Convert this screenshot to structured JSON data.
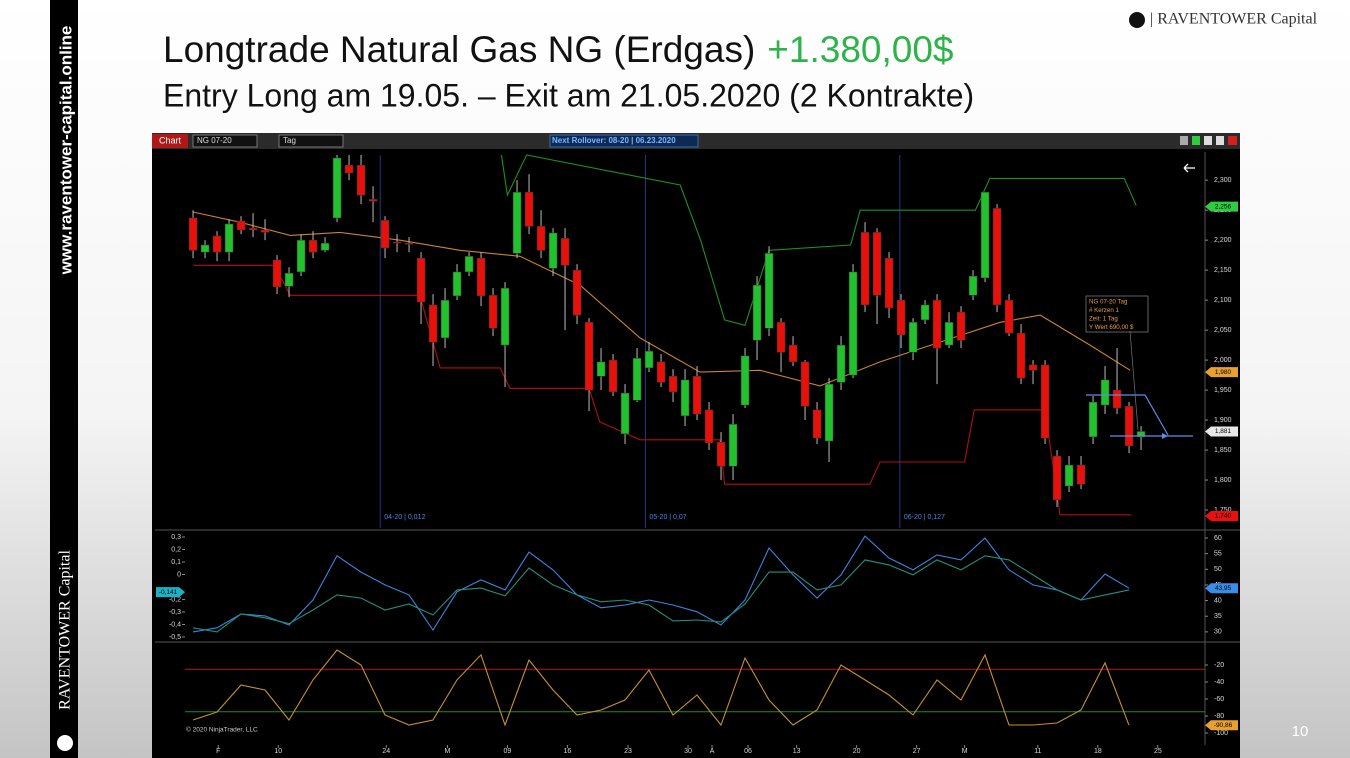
{
  "logo": "| RAVENTOWER Capital",
  "sidebar": {
    "url": "www.raventower-capital.online",
    "brand": "RAVENTOWER Capital"
  },
  "title": "Longtrade Natural Gas NG (Erdgas)",
  "profit": "+1.380,00$",
  "subtitle": "Entry Long am 19.05. – Exit am 21.05.2020 (2 Kontrakte)",
  "page_number": 10,
  "toolbar": {
    "label": "Chart",
    "instrument": "NG 07-20",
    "period": "Tag",
    "rollover": "Next Rollover: 08-20 | 06.23.2020"
  },
  "copyright": "© 2020 NinjaTrader, LLC",
  "chart_data": [
    {
      "type": "candlestick",
      "up_color": "#22c22e",
      "down_color": "#e8100a",
      "open": [
        2.237,
        2.18,
        2.207,
        2.18,
        2.232,
        2.22,
        2.217,
        2.167,
        2.123,
        2.147,
        2.2,
        2.183,
        2.237,
        2.325,
        2.325,
        2.268,
        2.233,
        2.197,
        2.195,
        2.17,
        2.092,
        2.037,
        2.107,
        2.147,
        2.17,
        2.108,
        2.025,
        2.178,
        2.28,
        2.223,
        2.153,
        2.203,
        2.15,
        2.063,
        1.973,
        2.0,
        1.877,
        1.933,
        1.987,
        1.997,
        1.973,
        1.907,
        1.973,
        1.917,
        1.863,
        1.823,
        1.925,
        2.033,
        2.053,
        2.063,
        2.025,
        1.997,
        1.917,
        1.865,
        1.963,
        1.975,
        2.213,
        2.213,
        2.17,
        2.1,
        2.013,
        2.067,
        2.1,
        2.025,
        2.08,
        2.108,
        2.137,
        2.253,
        2.1,
        2.045,
        1.992,
        1.992,
        1.84,
        1.79,
        1.825,
        1.872,
        1.925,
        1.95,
        1.923,
        1.872
      ],
      "high": [
        2.25,
        2.2,
        2.215,
        2.235,
        2.24,
        2.245,
        2.235,
        2.175,
        2.155,
        2.21,
        2.215,
        2.205,
        2.342,
        2.342,
        2.342,
        2.29,
        2.24,
        2.21,
        2.205,
        2.18,
        2.11,
        2.12,
        2.16,
        2.18,
        2.18,
        2.12,
        2.13,
        2.3,
        2.31,
        2.25,
        2.22,
        2.22,
        2.16,
        2.07,
        2.02,
        2.01,
        1.96,
        2.02,
        2.03,
        2.01,
        1.985,
        1.985,
        1.99,
        1.93,
        1.88,
        1.91,
        2.02,
        2.14,
        2.19,
        2.07,
        2.04,
        2.0,
        1.93,
        1.97,
        2.04,
        2.16,
        2.23,
        2.22,
        2.18,
        2.11,
        2.07,
        2.1,
        2.11,
        2.08,
        2.09,
        2.15,
        2.28,
        2.26,
        2.11,
        2.06,
        2.0,
        2.0,
        1.85,
        1.84,
        1.84,
        1.94,
        1.99,
        2.02,
        1.93,
        1.89
      ],
      "low": [
        2.17,
        2.17,
        2.165,
        2.165,
        2.21,
        2.205,
        2.2,
        2.11,
        2.105,
        2.14,
        2.17,
        2.18,
        2.23,
        2.3,
        2.26,
        2.23,
        2.17,
        2.18,
        2.18,
        2.06,
        1.99,
        2.02,
        2.1,
        2.14,
        2.09,
        2.04,
        1.955,
        2.17,
        2.21,
        2.17,
        2.14,
        2.05,
        2.06,
        1.915,
        1.95,
        1.94,
        1.86,
        1.93,
        1.98,
        1.955,
        1.93,
        1.89,
        1.9,
        1.85,
        1.8,
        1.8,
        1.92,
        2.0,
        2.04,
        1.98,
        1.99,
        1.9,
        1.86,
        1.83,
        1.95,
        1.97,
        2.08,
        2.06,
        2.07,
        2.02,
        2.0,
        2.06,
        1.96,
        2.02,
        2.02,
        2.1,
        2.13,
        2.08,
        2.04,
        1.96,
        1.96,
        1.86,
        1.755,
        1.78,
        1.785,
        1.86,
        1.91,
        1.91,
        1.845,
        1.85
      ],
      "close": [
        2.183,
        2.192,
        2.18,
        2.227,
        2.217,
        2.217,
        2.213,
        2.122,
        2.145,
        2.2,
        2.18,
        2.195,
        2.337,
        2.312,
        2.275,
        2.265,
        2.187,
        2.195,
        2.193,
        2.097,
        2.03,
        2.1,
        2.147,
        2.173,
        2.107,
        2.053,
        2.12,
        2.28,
        2.223,
        2.183,
        2.212,
        2.158,
        2.075,
        1.95,
        1.997,
        1.947,
        1.945,
        2.003,
        2.015,
        1.963,
        1.947,
        1.967,
        1.91,
        1.862,
        1.823,
        1.893,
        2.007,
        2.125,
        2.178,
        2.013,
        1.997,
        1.923,
        1.87,
        1.96,
        2.025,
        2.147,
        2.092,
        2.108,
        2.087,
        2.042,
        2.063,
        2.092,
        2.02,
        2.063,
        2.033,
        2.14,
        2.28,
        2.092,
        2.045,
        1.97,
        1.983,
        1.87,
        1.767,
        1.825,
        1.793,
        1.93,
        1.967,
        1.92,
        1.857,
        1.881
      ],
      "xlim": [
        -3.17,
        84.33
      ],
      "xticks": [
        {
          "value": 2.1,
          "label": "F"
        },
        {
          "value": 7.1,
          "label": "10"
        },
        {
          "value": 16.1,
          "label": "24"
        },
        {
          "value": 21.2,
          "label": "M"
        },
        {
          "value": 26.2,
          "label": "09"
        },
        {
          "value": 31.2,
          "label": "16"
        },
        {
          "value": 36.25,
          "label": "23"
        },
        {
          "value": 41.25,
          "label": "30"
        },
        {
          "value": 43.25,
          "label": "A"
        },
        {
          "value": 46.25,
          "label": "06"
        },
        {
          "value": 50.3,
          "label": "13"
        },
        {
          "value": 55.3,
          "label": "20"
        },
        {
          "value": 60.3,
          "label": "27"
        },
        {
          "value": 64.3,
          "label": "M"
        },
        {
          "value": 70.4,
          "label": "11"
        },
        {
          "value": 75.4,
          "label": "18"
        },
        {
          "value": 80.4,
          "label": "25"
        }
      ],
      "ylim": [
        1.72,
        2.342
      ],
      "yticks": [
        {
          "value": 1.75,
          "label": "1,750"
        },
        {
          "value": 1.8,
          "label": "1,800"
        },
        {
          "value": 1.85,
          "label": "1,850"
        },
        {
          "value": 1.9,
          "label": "1,900"
        },
        {
          "value": 1.95,
          "label": "1,950"
        },
        {
          "value": 2.0,
          "label": "2,000"
        },
        {
          "value": 2.05,
          "label": "2,050"
        },
        {
          "value": 2.1,
          "label": "2,100"
        },
        {
          "value": 2.15,
          "label": "2,150"
        },
        {
          "value": 2.2,
          "label": "2,200"
        },
        {
          "value": 2.25,
          "label": "2,250"
        },
        {
          "value": 2.3,
          "label": "2,300"
        }
      ],
      "overlays": [
        {
          "color": "#c8842c",
          "x": [
            0,
            3.9,
            8.1,
            12.25,
            17.25,
            22.25,
            27.25,
            32.25,
            37.25,
            42.25,
            47.25,
            52.25,
            57.25,
            62.25,
            67.25,
            70.6,
            74.75,
            78.1
          ],
          "values": [
            2.247,
            2.23,
            2.208,
            2.213,
            2.2,
            2.183,
            2.173,
            2.125,
            2.037,
            1.98,
            1.983,
            1.957,
            1.997,
            2.03,
            2.063,
            2.075,
            2.025,
            1.983
          ]
        },
        {
          "color": "#1f8f1f",
          "x": [
            25.7,
            26.2,
            27.8,
            40.6,
            42.3,
            44.3,
            46,
            48,
            54.8,
            55.6,
            65.2,
            66.4,
            77.6,
            78.6
          ],
          "values": [
            2.342,
            2.275,
            2.342,
            2.292,
            2.2,
            2.067,
            2.058,
            2.183,
            2.192,
            2.25,
            2.25,
            2.303,
            2.303,
            2.258
          ]
        },
        {
          "color": "#b01010",
          "x": [
            0,
            6.8,
            8.1,
            18.9,
            20.6,
            25.6,
            26.4,
            33,
            33.9,
            37.25,
            43.9,
            44.3,
            56.4,
            57.25,
            64.3,
            65.1,
            71,
            72.25,
            78.2
          ],
          "values": [
            2.158,
            2.158,
            2.108,
            2.108,
            1.987,
            1.987,
            1.953,
            1.953,
            1.897,
            1.867,
            1.867,
            1.793,
            1.793,
            1.83,
            1.83,
            1.917,
            1.917,
            1.742,
            1.742
          ]
        }
      ],
      "price_markers": [
        {
          "value": 2.256,
          "label": "2,256",
          "color": "#2ecc40"
        },
        {
          "value": 1.98,
          "label": "1,980",
          "color": "#e8a030"
        },
        {
          "value": 1.881,
          "label": "1,881",
          "color": "#e8e8e8"
        },
        {
          "value": 1.74,
          "label": "1,740",
          "color": "#e81010"
        }
      ],
      "rollovers": [
        {
          "x": 15.6,
          "label": "04-20 | 0,012"
        },
        {
          "x": 37.7,
          "label": "05-20 | 0,07"
        },
        {
          "x": 58.9,
          "label": "06-20 | 0,127"
        }
      ],
      "info_box": [
        "NG 07-20 Tag",
        "# Kerzen   1",
        "Zeit:   1 Tag",
        "Y Wert   690,00 $"
      ]
    },
    {
      "type": "line",
      "x": [
        0,
        2,
        4,
        6,
        8,
        10,
        12,
        14,
        16,
        18,
        20,
        22,
        24,
        26,
        28,
        30,
        32,
        34,
        36,
        38,
        40,
        42,
        44,
        46,
        48,
        50,
        52,
        54,
        56,
        58,
        60,
        62,
        64,
        66,
        68,
        70,
        72,
        74,
        76,
        78
      ],
      "xlim": [
        -3.17,
        84.33
      ],
      "ylim": [
        -0.524,
        0.332
      ],
      "yticks": [
        {
          "value": 0.3,
          "label": "0,3"
        },
        {
          "value": 0.2,
          "label": "0,2"
        },
        {
          "value": 0.1,
          "label": "0,1"
        },
        0,
        {
          "value": -0.2,
          "label": "-0,2"
        },
        {
          "value": -0.3,
          "label": "-0,3"
        },
        {
          "value": -0.4,
          "label": "-0,4"
        },
        {
          "value": -0.5,
          "label": "-0,5"
        }
      ],
      "y2lim": [
        27.4,
        61.6
      ],
      "y2ticks": [
        60,
        55,
        50,
        45,
        40,
        35,
        30
      ],
      "series": [
        {
          "color": "#3a86e0",
          "axis": "y2",
          "values": [
            30.0,
            31.3,
            35.7,
            35.1,
            32.2,
            40.2,
            54.3,
            49.1,
            45.0,
            41.8,
            30.6,
            42.8,
            46.6,
            43.4,
            55.5,
            49.8,
            41.8,
            37.7,
            38.6,
            40.2,
            38.6,
            36.4,
            32.2,
            40.2,
            56.8,
            48.2,
            40.8,
            48.2,
            60.6,
            53.6,
            49.8,
            54.6,
            53.0,
            60.0,
            49.8,
            45.0,
            43.4,
            40.2,
            48.5,
            43.95
          ]
        },
        {
          "color": "#23907c",
          "axis": "y2",
          "values": [
            31.3,
            30.0,
            35.7,
            34.5,
            32.6,
            37.0,
            41.8,
            40.8,
            37.0,
            38.9,
            35.4,
            43.4,
            44.0,
            41.5,
            50.4,
            45.0,
            41.8,
            39.6,
            40.2,
            38.6,
            33.5,
            33.8,
            33.2,
            38.9,
            49.1,
            49.1,
            43.4,
            45.0,
            53.0,
            51.4,
            48.2,
            53.0,
            49.8,
            54.3,
            53.0,
            48.2,
            43.4,
            40.2,
            41.8,
            43.4
          ]
        }
      ],
      "left_marker": {
        "value": -0.141,
        "label": "-0,141",
        "color": "#19b3c4"
      },
      "right_marker": {
        "value": 43.95,
        "label": "43,95",
        "color": "#3a8ee8"
      }
    },
    {
      "type": "line",
      "x": [
        0,
        2,
        4,
        6,
        8,
        10,
        12,
        14,
        16,
        18,
        20,
        22,
        24,
        26,
        28,
        30,
        32,
        34,
        36,
        38,
        40,
        42,
        44,
        46,
        48,
        50,
        52,
        54,
        56,
        58,
        60,
        62,
        64,
        66,
        68,
        70,
        72,
        74,
        76,
        78
      ],
      "xlim": [
        -3.17,
        84.33
      ],
      "y2lim": [
        -114.1,
        3.5
      ],
      "y2ticks": [
        -20,
        -40,
        -60,
        -80,
        -100
      ],
      "levels": [
        {
          "value": -25,
          "color": "#b81818"
        },
        {
          "value": -75,
          "color": "#228a22"
        }
      ],
      "series": [
        {
          "color": "#c8902c",
          "axis": "y2",
          "values": [
            -84.7,
            -75.3,
            -43.5,
            -49.4,
            -84.7,
            -37.6,
            -2.4,
            -20,
            -78.8,
            -90.6,
            -84.7,
            -37.6,
            -8.2,
            -90.6,
            -14.1,
            -49.4,
            -78.8,
            -72.9,
            -61.2,
            -25.9,
            -78.8,
            -55.3,
            -90.6,
            -11.8,
            -61.2,
            -90.6,
            -72.9,
            -20,
            -37.6,
            -55.3,
            -78.8,
            -37.6,
            -61.2,
            -8.2,
            -90.6,
            -90.6,
            -88.2,
            -72.9,
            -17.6,
            -90.86
          ]
        }
      ],
      "right_marker": {
        "value": -90.86,
        "label": "-90,86",
        "color": "#e8a030"
      }
    }
  ]
}
